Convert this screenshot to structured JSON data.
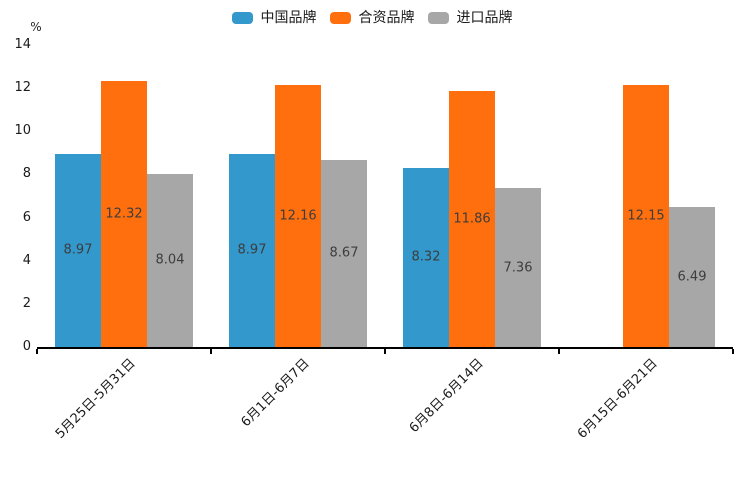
{
  "chart_data": {
    "type": "bar",
    "title": "",
    "ylabel": "%",
    "ylim": [
      0,
      14
    ],
    "yticks": [
      0,
      2,
      4,
      6,
      8,
      10,
      12,
      14
    ],
    "grid": false,
    "legend_position": "top-center",
    "value_labels": true,
    "value_label_color": "#3d3d3d",
    "axis_color": "#000000",
    "categories": [
      "5月25日-5月31日",
      "6月1日-6月7日",
      "6月8日-6月14日",
      "6月15日-6月21日"
    ],
    "series": [
      {
        "name": "中国品牌",
        "color": "#3398cc",
        "values": [
          8.97,
          8.97,
          8.32,
          null
        ]
      },
      {
        "name": "合资品牌",
        "color": "#ff6f0e",
        "values": [
          12.32,
          12.16,
          11.86,
          12.15
        ]
      },
      {
        "name": "进口品牌",
        "color": "#a7a7a7",
        "values": [
          8.04,
          8.67,
          7.36,
          6.49
        ]
      }
    ]
  }
}
